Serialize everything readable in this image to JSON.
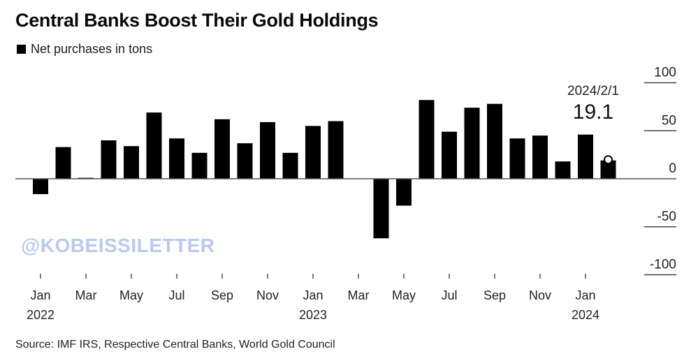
{
  "chart_data": {
    "type": "bar",
    "title": "Central Banks Boost Their Gold Holdings",
    "legend": [
      {
        "label": "Net purchases in tons",
        "color": "#000000"
      }
    ],
    "legend_position": "top-left",
    "xlabel": "",
    "ylabel": "",
    "ylim": [
      -100,
      100
    ],
    "yticks": [
      100,
      50,
      0,
      -50,
      -100
    ],
    "grid": false,
    "categories": [
      "2022-01",
      "2022-02",
      "2022-03",
      "2022-04",
      "2022-05",
      "2022-06",
      "2022-07",
      "2022-08",
      "2022-09",
      "2022-10",
      "2022-11",
      "2022-12",
      "2023-01",
      "2023-02",
      "2023-03",
      "2023-04",
      "2023-05",
      "2023-06",
      "2023-07",
      "2023-08",
      "2023-09",
      "2023-10",
      "2023-11",
      "2023-12",
      "2024-01",
      "2024-02"
    ],
    "values": [
      -16,
      33,
      1,
      40,
      34,
      69,
      42,
      27,
      62,
      37,
      59,
      27,
      55,
      60,
      0,
      -62,
      -28,
      82,
      49,
      74,
      78,
      42,
      45,
      18,
      46,
      19.1
    ],
    "xtick_labels": [
      {
        "month": "Jan",
        "year": "2022",
        "index": 0
      },
      {
        "month": "Mar",
        "year": "",
        "index": 2
      },
      {
        "month": "May",
        "year": "",
        "index": 4
      },
      {
        "month": "Jul",
        "year": "",
        "index": 6
      },
      {
        "month": "Sep",
        "year": "",
        "index": 8
      },
      {
        "month": "Nov",
        "year": "",
        "index": 10
      },
      {
        "month": "Jan",
        "year": "2023",
        "index": 12
      },
      {
        "month": "Mar",
        "year": "",
        "index": 14
      },
      {
        "month": "May",
        "year": "",
        "index": 16
      },
      {
        "month": "Jul",
        "year": "",
        "index": 18
      },
      {
        "month": "Sep",
        "year": "",
        "index": 20
      },
      {
        "month": "Nov",
        "year": "",
        "index": 22
      },
      {
        "month": "Jan",
        "year": "2024",
        "index": 24
      }
    ],
    "annotation": {
      "date": "2024/2/1",
      "value": "19.1",
      "index": 25
    },
    "bar_color": "#000000"
  },
  "header": {
    "title": "Central Banks Boost Their Gold Holdings",
    "legend_label": "Net purchases in tons"
  },
  "watermark": "@KOBEISSILETTER",
  "footer": {
    "source": "Source: IMF IRS, Respective Central Banks, World Gold Council"
  }
}
